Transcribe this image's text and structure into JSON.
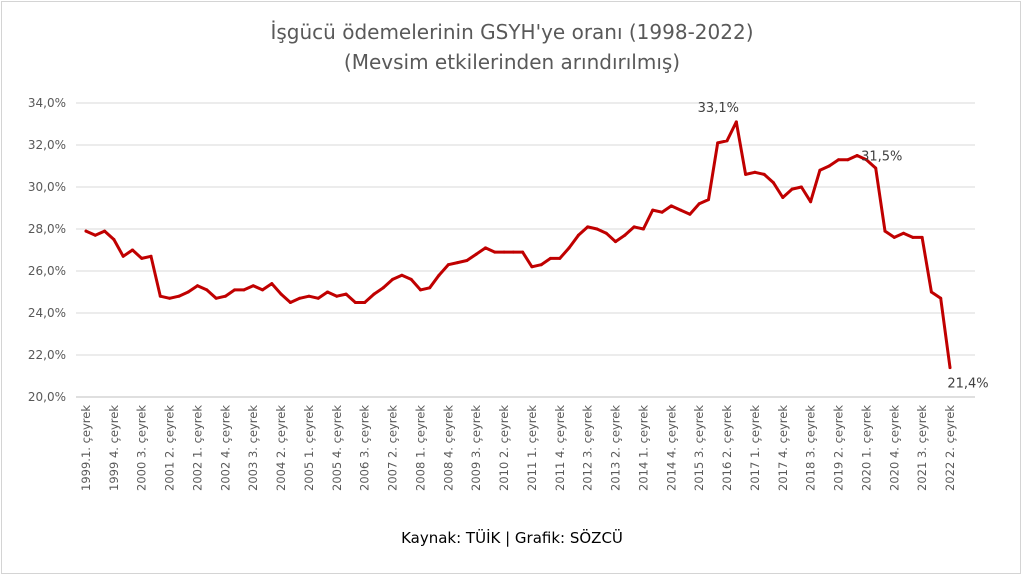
{
  "chart_data": {
    "type": "line",
    "title": "İşgücü ödemelerinin GSYH'ye oranı (1998-2022)",
    "subtitle": "(Mevsim etkilerinden arındırılmış)",
    "source": "Kaynak: TÜİK | Grafik: SÖZCÜ",
    "ylim": [
      20,
      34
    ],
    "y_ticks": [
      "20,0%",
      "22,0%",
      "24,0%",
      "26,0%",
      "28,0%",
      "30,0%",
      "32,0%",
      "34,0%"
    ],
    "y_tick_values": [
      20,
      22,
      24,
      26,
      28,
      30,
      32,
      34
    ],
    "grid": true,
    "legend": "none",
    "line_color": "#c00000",
    "x_tick_labels": [
      "1999.1. çeyrek",
      "1999 4. çeyrek",
      "2000 3. çeyrek",
      "2001 2. çeyrek",
      "2002 1. çeyrek",
      "2002 4. çeyrek",
      "2003 3. çeyrek",
      "2004 2. çeyrek",
      "2005 1. çeyrek",
      "2005 4. çeyrek",
      "2006 3. çeyrek",
      "2007 2. çeyrek",
      "2008 1. çeyrek",
      "2008 4. çeyrek",
      "2009 3. çeyrek",
      "2010 2. çeyrek",
      "2011 1. çeyrek",
      "2011 4. çeyrek",
      "2012 3. çeyrek",
      "2013 2. çeyrek",
      "2014 1. çeyrek",
      "2014 4. çeyrek",
      "2015 3. çeyrek",
      "2016 2. çeyrek",
      "2017 1. çeyrek",
      "2017 4. çeyrek",
      "2018 3. çeyrek",
      "2019 2. çeyrek",
      "2020 1. çeyrek",
      "2020 4. çeyrek",
      "2021 3. çeyrek",
      "2022 2. çeyrek"
    ],
    "values": [
      27.9,
      27.7,
      27.9,
      27.5,
      26.7,
      27.0,
      26.6,
      26.7,
      24.8,
      24.7,
      24.8,
      25.0,
      25.3,
      25.1,
      24.7,
      24.8,
      25.1,
      25.1,
      25.3,
      25.1,
      25.4,
      24.9,
      24.5,
      24.7,
      24.8,
      24.7,
      25.0,
      24.8,
      24.9,
      24.5,
      24.5,
      24.9,
      25.2,
      25.6,
      25.8,
      25.6,
      25.1,
      25.2,
      25.8,
      26.3,
      26.4,
      26.5,
      26.8,
      27.1,
      26.9,
      26.9,
      26.9,
      26.9,
      26.2,
      26.3,
      26.6,
      26.6,
      27.1,
      27.7,
      28.1,
      28.0,
      27.8,
      27.4,
      27.7,
      28.1,
      28.0,
      28.9,
      28.8,
      29.1,
      28.9,
      28.7,
      29.2,
      29.4,
      32.1,
      32.2,
      33.1,
      30.6,
      30.7,
      30.6,
      30.2,
      29.5,
      29.9,
      30.0,
      29.3,
      30.8,
      31.0,
      31.3,
      31.3,
      31.5,
      31.3,
      30.9,
      27.9,
      27.6,
      27.8,
      27.6,
      27.6,
      25.0,
      24.7,
      21.4
    ],
    "annotations": [
      {
        "index": 70,
        "text": "33,1%",
        "placement": "above"
      },
      {
        "index": 83,
        "text": "31,5%",
        "placement": "right"
      },
      {
        "index": 93,
        "text": "21,4%",
        "placement": "below"
      }
    ]
  }
}
